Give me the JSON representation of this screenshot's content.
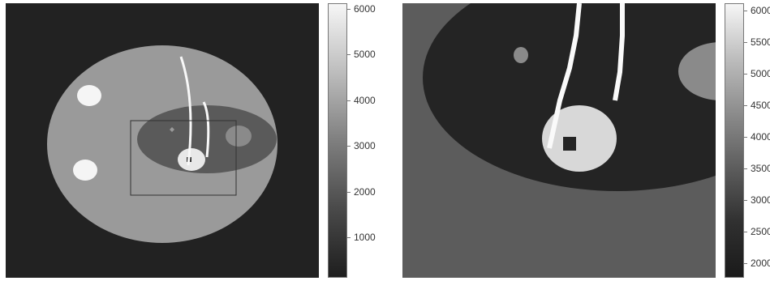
{
  "left_panel": {
    "colorbar": {
      "ticks": [
        "6000",
        "5000",
        "4000",
        "3000",
        "2000",
        "1000"
      ]
    }
  },
  "right_panel": {
    "colorbar": {
      "ticks": [
        "6000",
        "5500",
        "5000",
        "4500",
        "4000",
        "3500",
        "3000",
        "2500",
        "2000"
      ]
    }
  },
  "colors": {
    "background": "#222222",
    "phantom_body": "#9a9a9a",
    "inner_ellipse": "#5a5a5a",
    "bright": "#f2f2f2",
    "small_dark": "#2a2a2a",
    "zoom_outer": "#5c5c5c",
    "zoom_dark": "#242424",
    "zoom_lesion": "#8a8a8a",
    "zoom_bright": "#d8d8d8"
  }
}
